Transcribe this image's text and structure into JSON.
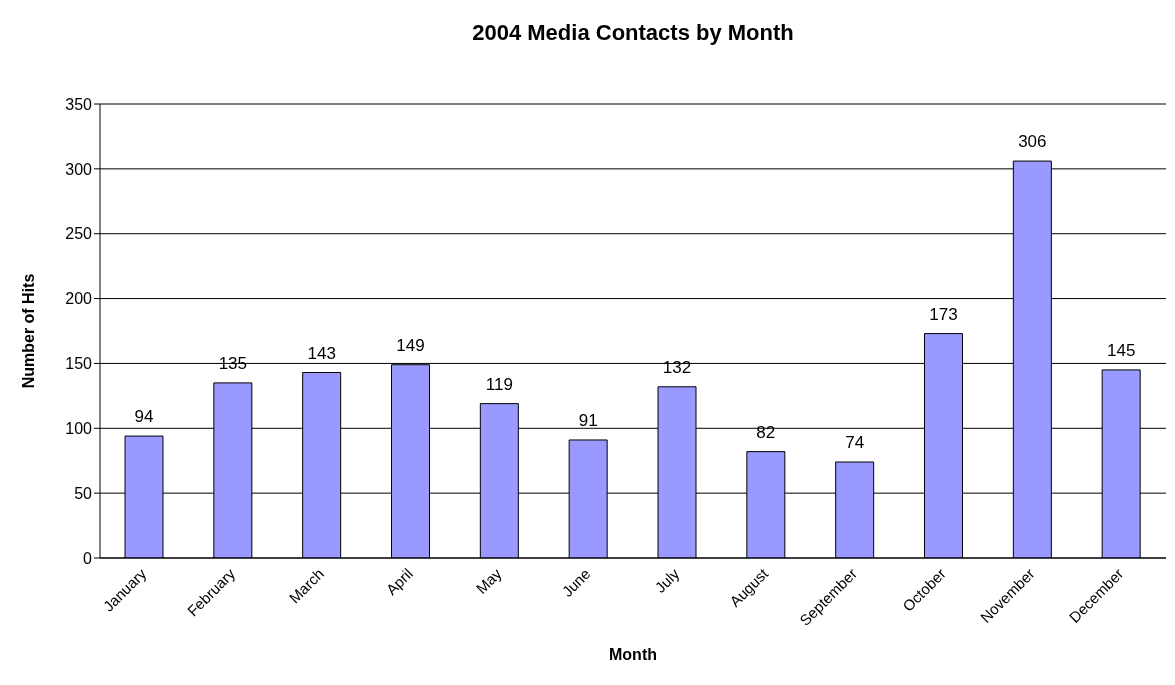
{
  "chart_data": {
    "type": "bar",
    "title": "2004 Media Contacts by Month",
    "xlabel": "Month",
    "ylabel": "Number of Hits",
    "categories": [
      "January",
      "February",
      "March",
      "April",
      "May",
      "June",
      "July",
      "August",
      "September",
      "October",
      "November",
      "December"
    ],
    "values": [
      94,
      135,
      143,
      149,
      119,
      91,
      132,
      82,
      74,
      173,
      306,
      145
    ],
    "color": "#9999ff",
    "ylim": [
      0,
      350
    ],
    "yticks": [
      0,
      50,
      100,
      150,
      200,
      250,
      300,
      350
    ],
    "grid": "y",
    "data_labels": true
  }
}
